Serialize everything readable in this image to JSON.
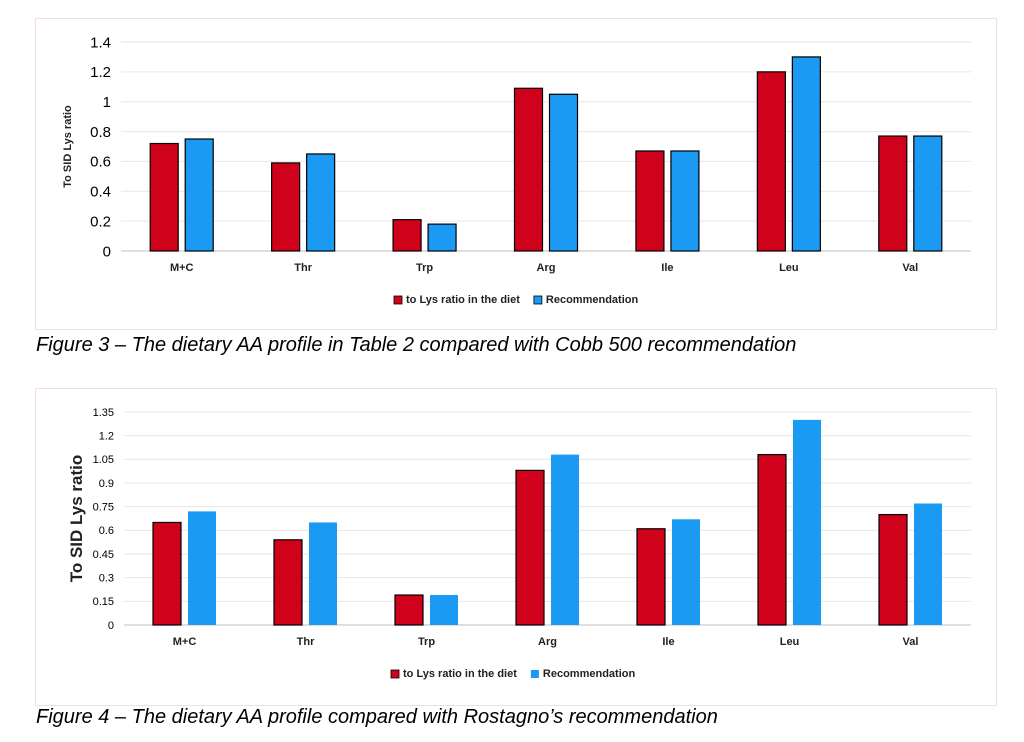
{
  "colors": {
    "diet": "#d0021b",
    "recommendation": "#1a9af2",
    "grid": "#e6e6e6",
    "frame_border": "#f2dede"
  },
  "chart_data": [
    {
      "type": "bar",
      "categories": [
        "M+C",
        "Thr",
        "Trp",
        "Arg",
        "Ile",
        "Leu",
        "Val"
      ],
      "series": [
        {
          "name": "to Lys ratio in the diet",
          "values": [
            0.72,
            0.59,
            0.21,
            1.09,
            0.67,
            1.2,
            0.77
          ]
        },
        {
          "name": "Recommendation",
          "values": [
            0.75,
            0.65,
            0.18,
            1.05,
            0.67,
            1.3,
            0.77
          ]
        }
      ],
      "ylabel": "To SID Lys ratio",
      "ylim": [
        0,
        1.4
      ],
      "yticks": [
        "0",
        "0.2",
        "0.4",
        "0.6",
        "0.8",
        "1",
        "1.2",
        "1.4"
      ],
      "grid": true,
      "legend": "bottom-center",
      "caption": "Figure 3 – The dietary AA profile in Table 2 compared with Cobb 500 recommendation"
    },
    {
      "type": "bar",
      "categories": [
        "M+C",
        "Thr",
        "Trp",
        "Arg",
        "Ile",
        "Leu",
        "Val"
      ],
      "series": [
        {
          "name": "to Lys ratio in the diet",
          "values": [
            0.65,
            0.54,
            0.19,
            0.98,
            0.61,
            1.08,
            0.7
          ]
        },
        {
          "name": "Recommendation",
          "values": [
            0.72,
            0.65,
            0.19,
            1.08,
            0.67,
            1.3,
            0.77
          ]
        }
      ],
      "ylabel": "To SID Lys ratio",
      "ylim": [
        0,
        1.35
      ],
      "yticks": [
        "0",
        "0.15",
        "0.3",
        "0.45",
        "0.6",
        "0.75",
        "0.9",
        "1.05",
        "1.2",
        "1.35"
      ],
      "grid": true,
      "legend": "bottom-center",
      "caption": "Figure 4 – The dietary AA profile compared with Rostagno’s recommendation"
    }
  ]
}
